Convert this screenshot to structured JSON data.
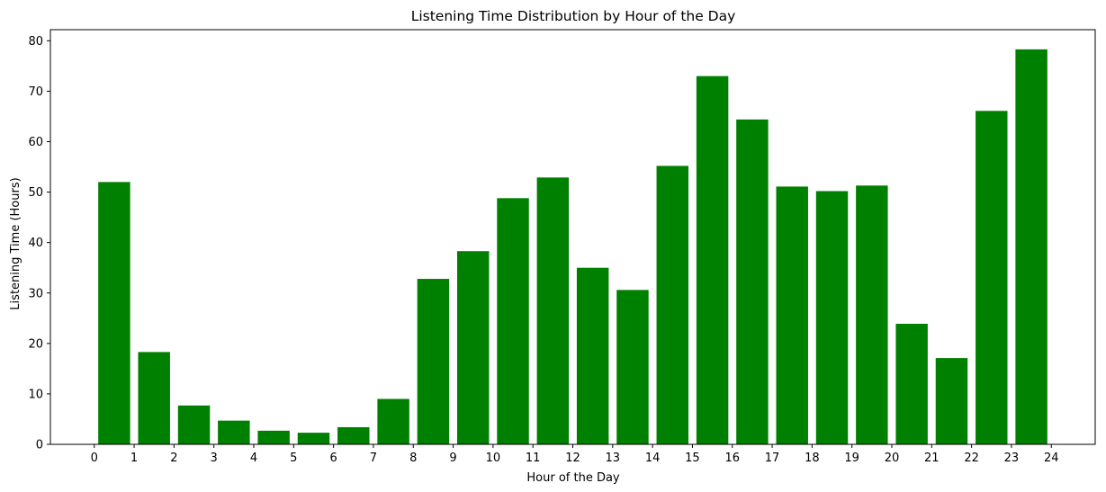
{
  "chart_data": {
    "type": "bar",
    "title": "Listening Time Distribution by Hour of the Day",
    "xlabel": "Hour of the Day",
    "ylabel": "Listening Time (Hours)",
    "x_ticks": [
      "0",
      "1",
      "2",
      "3",
      "4",
      "5",
      "6",
      "7",
      "8",
      "9",
      "10",
      "11",
      "12",
      "13",
      "14",
      "15",
      "16",
      "17",
      "18",
      "19",
      "20",
      "21",
      "22",
      "23",
      "24"
    ],
    "y_ticks": [
      0,
      10,
      20,
      30,
      40,
      50,
      60,
      70,
      80
    ],
    "xlim": [
      -1.1,
      25.1
    ],
    "ylim": [
      0,
      82.2
    ],
    "grid": false,
    "bar_color": "#008000",
    "bars": [
      {
        "x": 0.5,
        "value": 52.0
      },
      {
        "x": 1.5,
        "value": 18.3
      },
      {
        "x": 2.5,
        "value": 7.7
      },
      {
        "x": 3.5,
        "value": 4.7
      },
      {
        "x": 4.5,
        "value": 2.7
      },
      {
        "x": 5.5,
        "value": 2.3
      },
      {
        "x": 6.5,
        "value": 3.4
      },
      {
        "x": 7.5,
        "value": 9.0
      },
      {
        "x": 8.5,
        "value": 32.8
      },
      {
        "x": 9.5,
        "value": 38.3
      },
      {
        "x": 10.5,
        "value": 48.8
      },
      {
        "x": 11.5,
        "value": 52.9
      },
      {
        "x": 12.5,
        "value": 35.0
      },
      {
        "x": 13.5,
        "value": 30.6
      },
      {
        "x": 14.5,
        "value": 55.2
      },
      {
        "x": 15.5,
        "value": 73.0
      },
      {
        "x": 16.5,
        "value": 64.4
      },
      {
        "x": 17.5,
        "value": 51.1
      },
      {
        "x": 18.5,
        "value": 50.2
      },
      {
        "x": 19.5,
        "value": 51.3
      },
      {
        "x": 20.5,
        "value": 23.9
      },
      {
        "x": 21.5,
        "value": 17.1
      },
      {
        "x": 22.5,
        "value": 66.1
      },
      {
        "x": 23.5,
        "value": 78.3
      }
    ]
  }
}
